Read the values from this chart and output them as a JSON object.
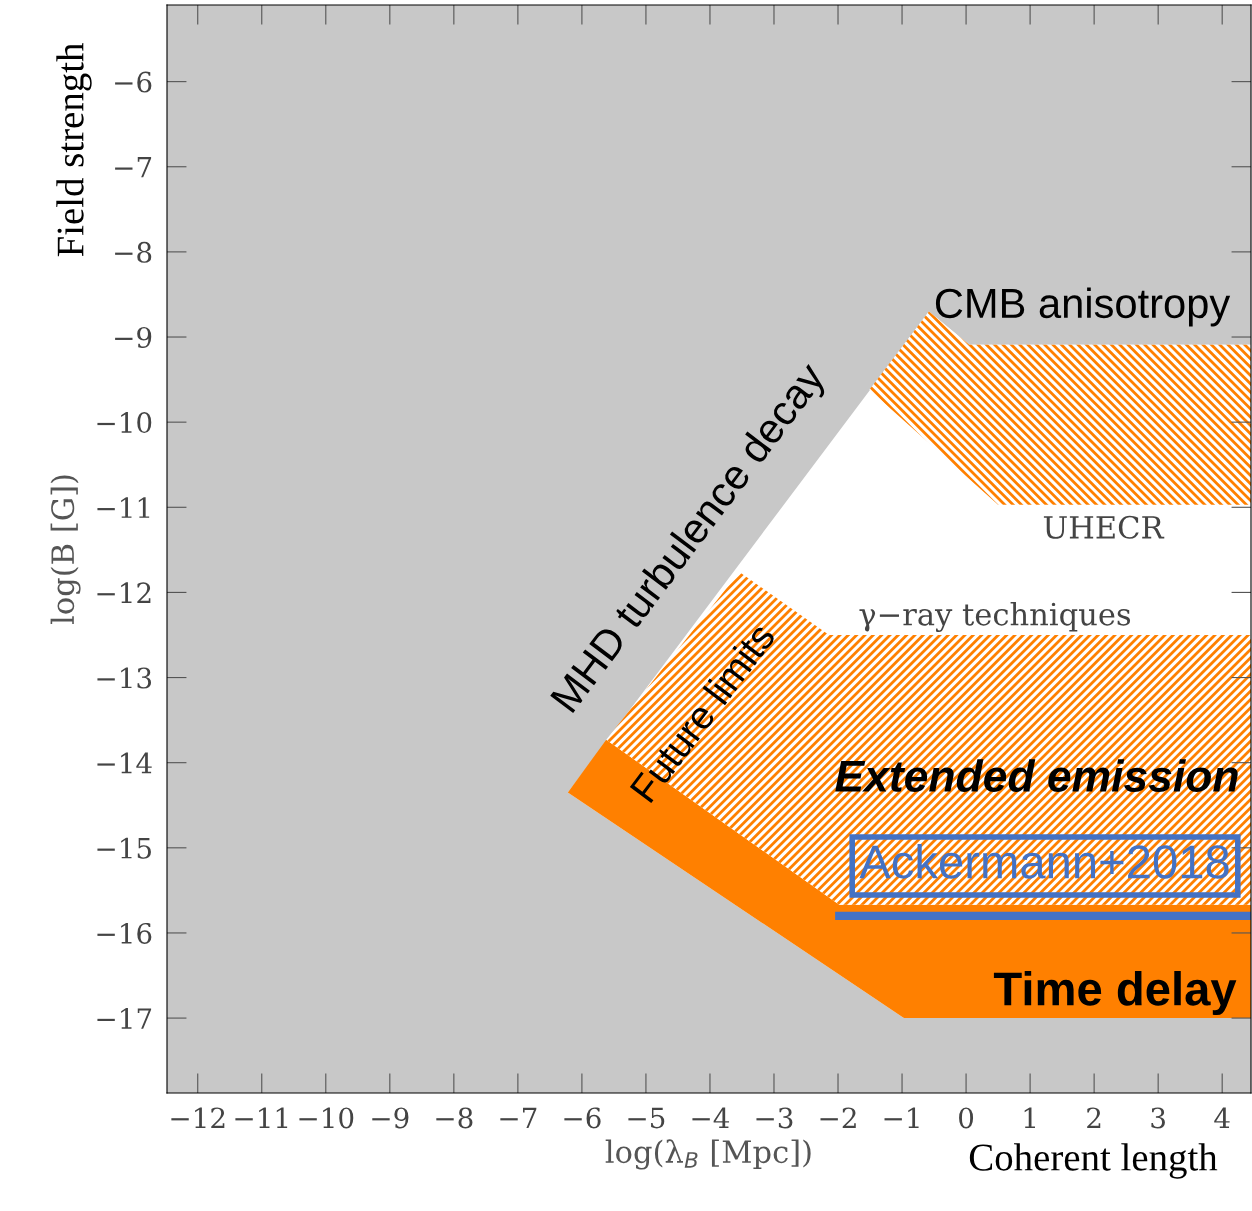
{
  "chart_data": {
    "type": "area",
    "xlabel": "log(λ$_{B}$ [Mpc])",
    "ylabel": "log(B [G])",
    "xlim": [
      -12.48,
      4.45
    ],
    "ylim": [
      -17.88,
      -5.1
    ],
    "xticks": [
      -12,
      -11,
      -10,
      -9,
      -8,
      -7,
      -6,
      -5,
      -4,
      -3,
      -2,
      -1,
      0,
      1,
      2,
      3,
      4
    ],
    "yticks": [
      -6,
      -7,
      -8,
      -9,
      -10,
      -11,
      -12,
      -13,
      -14,
      -15,
      -16,
      -17
    ],
    "grid": false,
    "legend": false,
    "series": [
      {
        "color": "#ffffff",
        "x": [
          -6.22,
          -0.58,
          0.05,
          4.45,
          4.45,
          -0.97,
          -6.22
        ],
        "values": [
          -14.35,
          -8.7,
          -9.09,
          -9.09,
          -17,
          -17,
          -14.35
        ]
      },
      {
        "color": "#ff8000",
        "x": [
          -6.22,
          -5.62,
          -1.98,
          4.45,
          4.45,
          -0.97,
          -6.22
        ],
        "values": [
          -14.35,
          -13.73,
          -15.67,
          -15.67,
          -17,
          -17,
          -14.35
        ]
      },
      {
        "color": "#ff8000",
        "x": [
          -5.62,
          -3.54,
          -2.14,
          4.45,
          4.45,
          -1.98,
          -5.62
        ],
        "values": [
          -13.73,
          -11.76,
          -12.5,
          -12.5,
          -15.67,
          -15.67,
          -13.73
        ]
      },
      {
        "color": "#ff8000",
        "x": [
          -1.51,
          -0.58,
          0.05,
          4.45,
          4.45,
          0.5,
          -1.51
        ],
        "values": [
          -9.62,
          -8.7,
          -9.09,
          -9.09,
          -10.97,
          -10.97,
          -9.62
        ]
      },
      {
        "type": "line",
        "color": "#4472c4",
        "x": [
          -1.98,
          4.45
        ],
        "values": [
          -15.8,
          -15.8
        ]
      }
    ],
    "annotations": [
      "MHD turbulence decay",
      "Future limits",
      "CMB anisotropy",
      "UHECR",
      "γ−ray techniques",
      "Extended emission",
      "Ackermann+2018",
      "Time delay",
      "Field strength",
      "Coherent length"
    ]
  }
}
